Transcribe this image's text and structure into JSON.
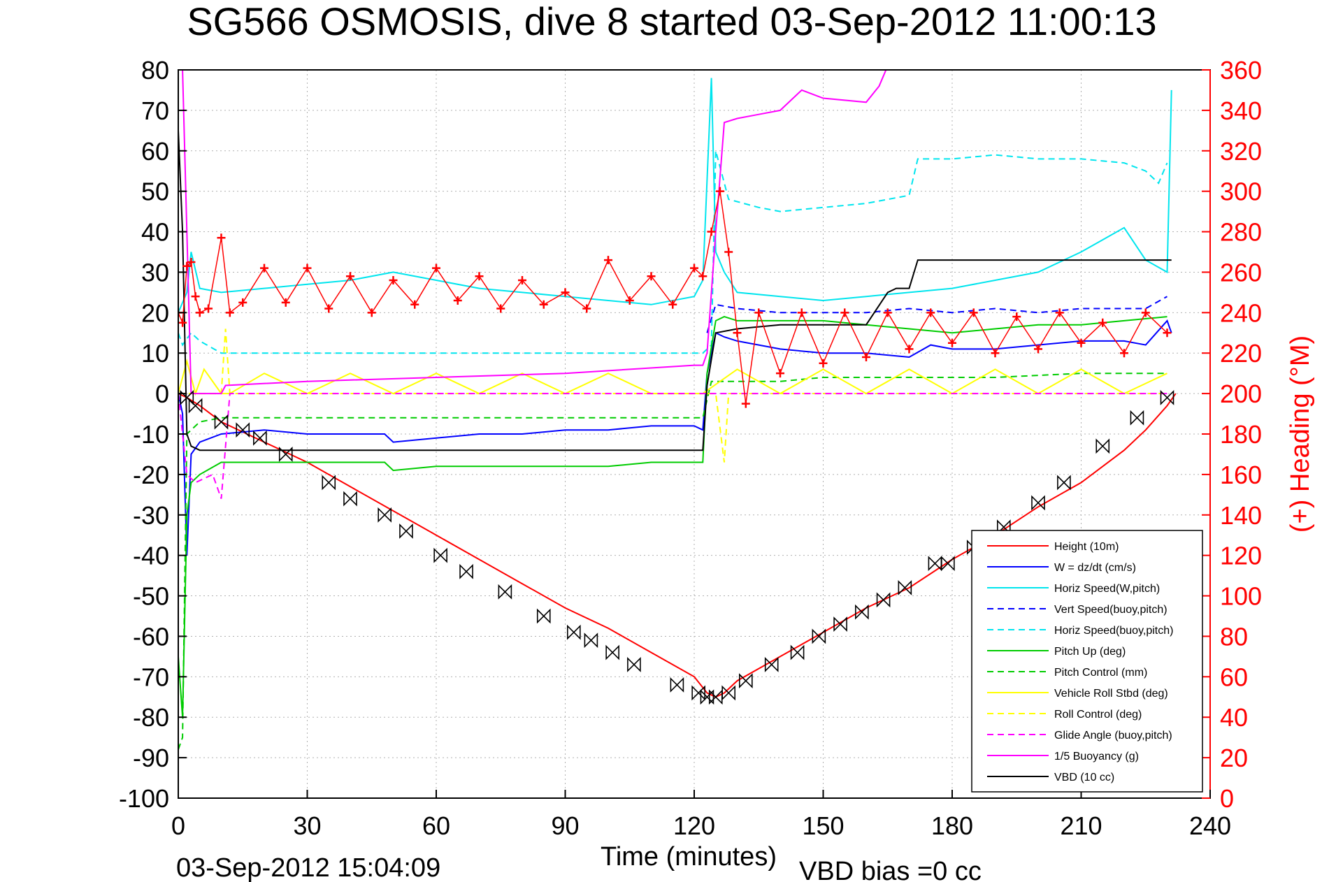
{
  "chart_data": {
    "type": "line",
    "title": "SG566 OSMOSIS, dive 8 started 03-Sep-2012 11:00:13",
    "xlabel": "Time (minutes)",
    "ylabel_right": "(+) Heading (°M)",
    "footer_left": "03-Sep-2012 15:04:09",
    "footer_right": "VBD bias =0 cc",
    "xlim": [
      0,
      240
    ],
    "ylim": [
      -100,
      80
    ],
    "ylim_right": [
      0,
      360
    ],
    "x_ticks": [
      "0",
      "30",
      "60",
      "90",
      "120",
      "150",
      "180",
      "210",
      "240"
    ],
    "y_ticks": [
      "80",
      "70",
      "60",
      "50",
      "40",
      "30",
      "20",
      "10",
      "0",
      "-10",
      "-20",
      "-30",
      "-40",
      "-50",
      "-60",
      "-70",
      "-80",
      "-90",
      "-100"
    ],
    "y_ticks_right": [
      "360",
      "340",
      "320",
      "300",
      "280",
      "260",
      "240",
      "220",
      "200",
      "180",
      "160",
      "140",
      "120",
      "100",
      "80",
      "60",
      "40",
      "20",
      "0"
    ],
    "grid": true,
    "legend_position": "bottom-right",
    "series": [
      {
        "name": "Height (10m)",
        "color": "#ff0000",
        "style": "solid",
        "x": [
          0,
          2,
          5,
          10,
          20,
          30,
          40,
          50,
          60,
          70,
          80,
          90,
          100,
          110,
          120,
          123,
          125,
          127,
          130,
          140,
          150,
          160,
          170,
          180,
          190,
          200,
          210,
          220,
          225,
          230,
          232
        ],
        "y": [
          0,
          -1,
          -3,
          -7,
          -12,
          -17,
          -23,
          -29,
          -35,
          -41,
          -47,
          -53,
          -58,
          -64,
          -70,
          -74,
          -75,
          -74,
          -71,
          -65,
          -59,
          -53,
          -48,
          -41,
          -35,
          -28,
          -22,
          -14,
          -9,
          -3,
          0
        ]
      },
      {
        "name": "W = dz/dt (cm/s)",
        "color": "#0000ff",
        "style": "solid",
        "x": [
          0,
          1,
          2,
          3,
          5,
          10,
          20,
          30,
          40,
          48,
          50,
          60,
          70,
          80,
          90,
          100,
          110,
          120,
          122,
          123,
          125,
          127,
          130,
          140,
          150,
          160,
          170,
          175,
          180,
          190,
          200,
          210,
          220,
          225,
          230,
          231
        ],
        "y": [
          0,
          -5,
          -40,
          -15,
          -12,
          -10,
          -9,
          -10,
          -10,
          -10,
          -12,
          -11,
          -10,
          -10,
          -9,
          -9,
          -8,
          -8,
          -9,
          5,
          15,
          14,
          13,
          11,
          10,
          10,
          9,
          12,
          11,
          11,
          12,
          13,
          13,
          12,
          18,
          15
        ]
      },
      {
        "name": "Horiz Speed(W,pitch)",
        "color": "#00e5ee",
        "style": "solid",
        "x": [
          0,
          2,
          3,
          5,
          10,
          20,
          30,
          40,
          50,
          60,
          70,
          80,
          90,
          100,
          110,
          120,
          122,
          124,
          125,
          127,
          130,
          140,
          150,
          160,
          170,
          180,
          190,
          200,
          210,
          215,
          220,
          225,
          230,
          231
        ],
        "y": [
          20,
          25,
          35,
          26,
          25,
          26,
          27,
          28,
          30,
          28,
          26,
          25,
          24,
          23,
          22,
          24,
          28,
          78,
          35,
          30,
          25,
          24,
          23,
          24,
          25,
          26,
          28,
          30,
          35,
          38,
          41,
          33,
          30,
          75
        ]
      },
      {
        "name": "Vert Speed(buoy,pitch)",
        "color": "#0000ff",
        "style": "dashed",
        "x": [
          123,
          125,
          130,
          140,
          150,
          160,
          170,
          180,
          190,
          200,
          210,
          220,
          225,
          230
        ],
        "y": [
          15,
          22,
          21,
          20,
          20,
          20,
          21,
          20,
          21,
          20,
          21,
          21,
          21,
          24
        ]
      },
      {
        "name": "Horiz Speed(buoy,pitch)",
        "color": "#00e5ee",
        "style": "dashed",
        "x": [
          0,
          1,
          3,
          5,
          10,
          122,
          124,
          125,
          128,
          135,
          140,
          150,
          160,
          170,
          172,
          180,
          190,
          200,
          210,
          220,
          225,
          228,
          230
        ],
        "y": [
          15,
          12,
          15,
          13,
          10,
          10,
          12,
          60,
          48,
          46,
          45,
          46,
          47,
          49,
          58,
          58,
          59,
          58,
          58,
          57,
          55,
          52,
          57
        ]
      },
      {
        "name": "Pitch Up (deg)",
        "color": "#00cc00",
        "style": "solid",
        "x": [
          0,
          1,
          2,
          3,
          5,
          10,
          20,
          30,
          40,
          48,
          50,
          60,
          70,
          80,
          90,
          100,
          110,
          120,
          122,
          123,
          125,
          127,
          130,
          140,
          150,
          160,
          170,
          180,
          190,
          200,
          210,
          220,
          230
        ],
        "y": [
          -65,
          -80,
          -30,
          -22,
          -20,
          -17,
          -17,
          -17,
          -17,
          -17,
          -19,
          -18,
          -18,
          -18,
          -18,
          -18,
          -17,
          -17,
          -17,
          5,
          18,
          19,
          18,
          18,
          18,
          17,
          16,
          15,
          16,
          17,
          17,
          18,
          19
        ]
      },
      {
        "name": "Pitch Control (mm)",
        "color": "#00cc00",
        "style": "dashed",
        "x": [
          0,
          1,
          2,
          5,
          10,
          20,
          60,
          100,
          122,
          124,
          130,
          140,
          150,
          170,
          190,
          210,
          230
        ],
        "y": [
          -88,
          -85,
          -10,
          -7,
          -6,
          -6,
          -6,
          -6,
          -6,
          3,
          3,
          3,
          4,
          4,
          4,
          5,
          5
        ]
      },
      {
        "name": "Vehicle Roll Stbd (deg)",
        "color": "#ffff00",
        "style": "solid",
        "x": [
          0,
          2,
          4,
          6,
          10,
          12,
          20,
          30,
          40,
          50,
          60,
          70,
          80,
          90,
          100,
          110,
          120,
          122,
          130,
          140,
          150,
          160,
          170,
          180,
          190,
          200,
          210,
          220,
          230
        ],
        "y": [
          0,
          8,
          0,
          6,
          0,
          0,
          5,
          0,
          5,
          0,
          5,
          0,
          5,
          0,
          5,
          0,
          0,
          0,
          6,
          0,
          6,
          0,
          6,
          0,
          6,
          0,
          6,
          0,
          5
        ]
      },
      {
        "name": "Roll Control (deg)",
        "color": "#ffff00",
        "style": "dashed",
        "x": [
          0,
          2,
          10,
          11,
          12,
          120,
          122,
          125,
          127,
          128,
          130,
          230
        ],
        "y": [
          0,
          0,
          0,
          16,
          0,
          0,
          0,
          0,
          -17,
          0,
          0,
          0
        ]
      },
      {
        "name": "Glide Angle (buoy,pitch)",
        "color": "#ff00ff",
        "style": "dashed",
        "x": [
          0,
          2,
          4,
          8,
          10,
          12,
          60,
          120,
          123,
          125,
          130,
          180,
          230
        ],
        "y": [
          0,
          -20,
          -22,
          -20,
          -26,
          0,
          0,
          0,
          0,
          0,
          0,
          0,
          0
        ]
      },
      {
        "name": "1/5 Buoyancy (g)",
        "color": "#ff00ff",
        "style": "solid",
        "x": [
          1,
          2,
          3,
          10,
          11,
          30,
          60,
          90,
          120,
          122,
          123,
          125,
          127,
          130,
          135,
          140,
          145,
          150,
          160,
          163,
          165
        ],
        "y": [
          80,
          40,
          0,
          0,
          2,
          3,
          4,
          5,
          7,
          7,
          10,
          40,
          67,
          68,
          69,
          70,
          75,
          73,
          72,
          76,
          81
        ]
      },
      {
        "name": "VBD (10 cc)",
        "color": "#000000",
        "style": "solid",
        "x": [
          0,
          1,
          2,
          3,
          5,
          10,
          30,
          60,
          90,
          120,
          122,
          123,
          125,
          130,
          140,
          150,
          160,
          165,
          167,
          170,
          172,
          180,
          200,
          220,
          231
        ],
        "y": [
          65,
          40,
          -10,
          -13,
          -14,
          -14,
          -14,
          -14,
          -14,
          -14,
          -14,
          2,
          15,
          16,
          17,
          17,
          17,
          25,
          26,
          26,
          33,
          33,
          33,
          33,
          33
        ]
      }
    ],
    "heading_series": {
      "name": "(+) Heading (°M)",
      "color": "#ff0000",
      "marker": "+",
      "x": [
        0,
        1,
        2,
        3,
        4,
        5,
        7,
        10,
        12,
        15,
        20,
        25,
        30,
        35,
        40,
        45,
        50,
        55,
        60,
        65,
        70,
        75,
        80,
        85,
        90,
        95,
        100,
        105,
        110,
        115,
        120,
        122,
        124,
        126,
        128,
        130,
        132,
        135,
        140,
        145,
        150,
        155,
        160,
        165,
        170,
        175,
        180,
        185,
        190,
        195,
        200,
        205,
        210,
        215,
        220,
        225,
        230
      ],
      "y": [
        240,
        235,
        263,
        265,
        248,
        240,
        242,
        277,
        240,
        245,
        262,
        245,
        262,
        242,
        258,
        240,
        256,
        244,
        262,
        246,
        258,
        242,
        256,
        244,
        250,
        242,
        266,
        246,
        258,
        244,
        262,
        258,
        280,
        300,
        270,
        230,
        195,
        240,
        210,
        240,
        215,
        240,
        218,
        240,
        222,
        240,
        225,
        240,
        220,
        238,
        222,
        240,
        225,
        235,
        220,
        240,
        230
      ]
    },
    "dive_markers": {
      "name": "",
      "color": "#000000",
      "marker": "bowtie",
      "x": [
        2,
        4,
        10,
        15,
        19,
        25,
        35,
        40,
        48,
        53,
        61,
        67,
        76,
        85,
        92,
        96,
        101,
        106,
        116,
        121,
        123,
        125,
        128,
        132,
        138,
        144,
        149,
        154,
        159,
        164,
        169,
        176,
        179,
        185,
        192,
        200,
        206,
        215,
        223,
        230
      ],
      "y": [
        -1,
        -3,
        -7,
        -9,
        -11,
        -15,
        -22,
        -26,
        -30,
        -34,
        -40,
        -44,
        -49,
        -55,
        -59,
        -61,
        -64,
        -67,
        -72,
        -74,
        -75,
        -75,
        -74,
        -71,
        -67,
        -64,
        -60,
        -57,
        -54,
        -51,
        -48,
        -42,
        -42,
        -38,
        -33,
        -27,
        -22,
        -13,
        -6,
        -1
      ]
    }
  }
}
